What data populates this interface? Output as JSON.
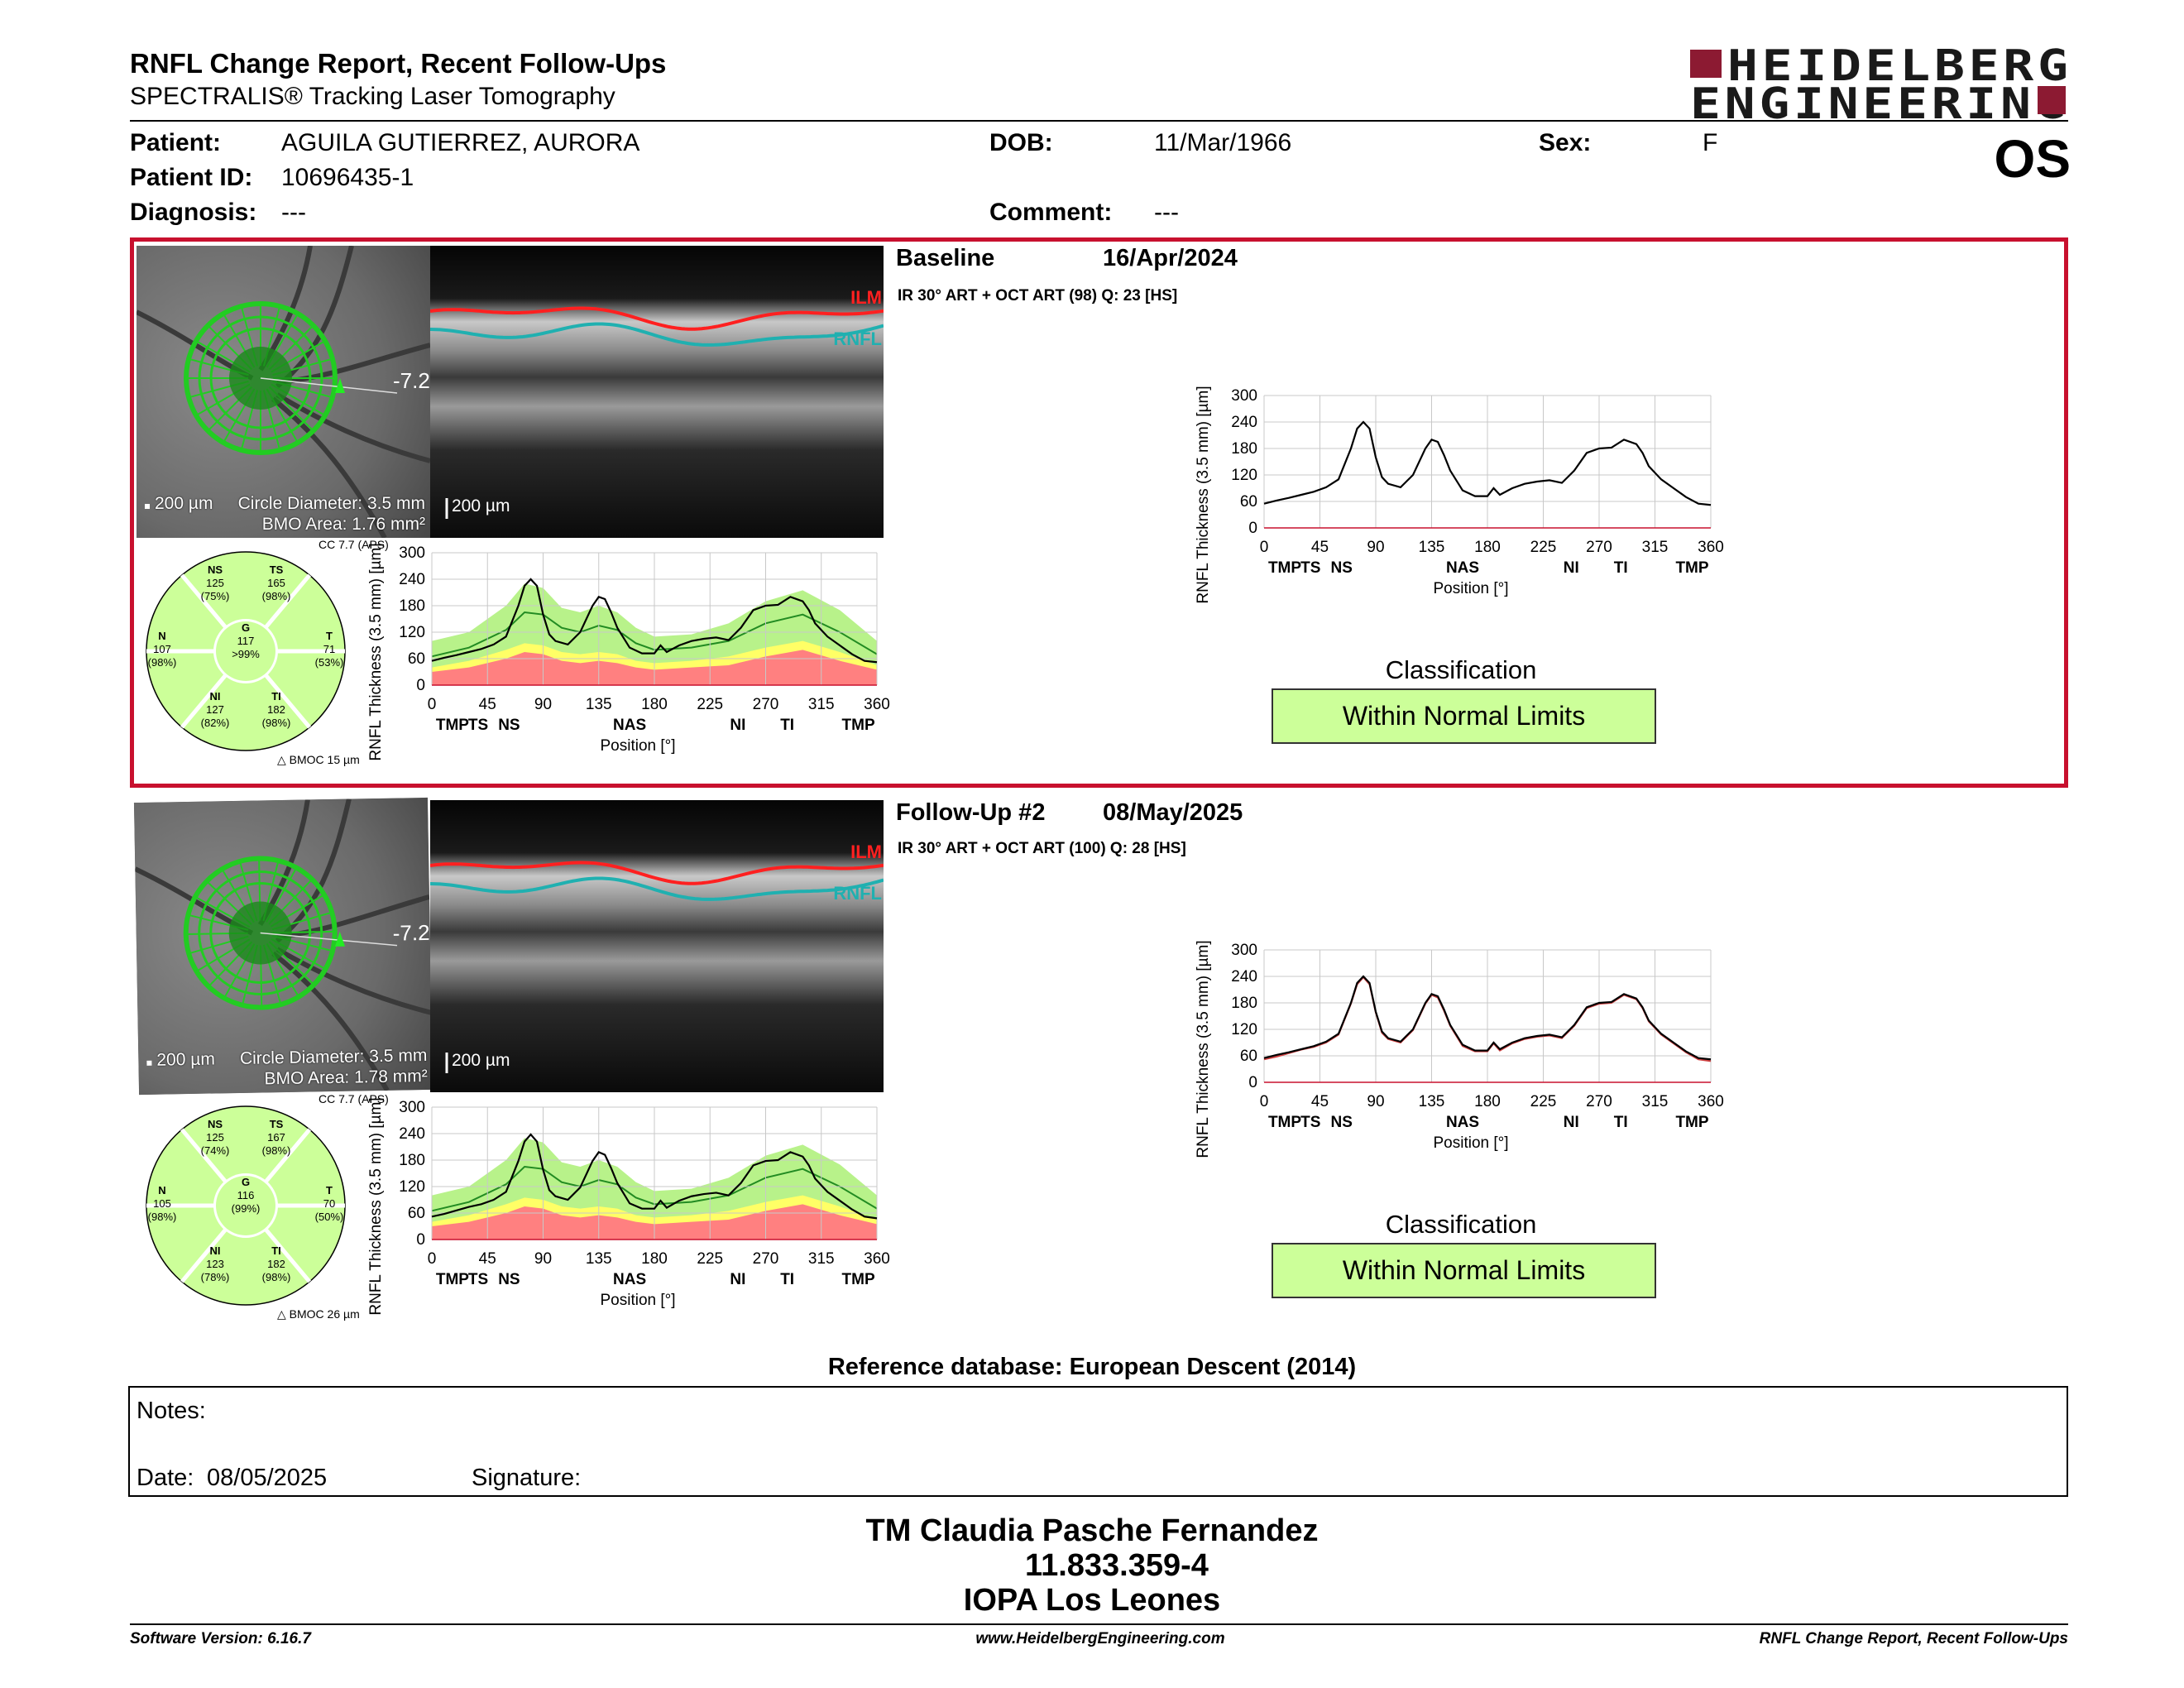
{
  "header": {
    "title": "RNFL Change Report, Recent Follow-Ups",
    "subtitle": "SPECTRALIS® Tracking Laser Tomography",
    "logo_line1": "HEIDELBERG",
    "logo_line2": "ENGINEERING",
    "eye": "OS"
  },
  "patient": {
    "name_label": "Patient:",
    "name": "AGUILA GUTIERREZ, AURORA",
    "dob_label": "DOB:",
    "dob": "11/Mar/1966",
    "sex_label": "Sex:",
    "sex": "F",
    "id_label": "Patient ID:",
    "id": "10696435-1",
    "diagnosis_label": "Diagnosis:",
    "diagnosis": "---",
    "comment_label": "Comment:",
    "comment": "---"
  },
  "colors": {
    "frame_red": "#c8102e",
    "logo_red": "#8c1a32",
    "within_normal": "#ccff99",
    "borderline": "#ffff66",
    "outside_normal": "#ff8080",
    "measured_line": "#000000",
    "normative_mean": "#228b22"
  },
  "axes": {
    "ylabel": "RNFL Thickness (3.5 mm) [µm]",
    "xlabel": "Position [°]",
    "yticks": [
      "300",
      "240",
      "180",
      "120",
      "60",
      "0"
    ],
    "xticks": [
      "0",
      "45",
      "90",
      "135",
      "180",
      "225",
      "270",
      "315",
      "360"
    ],
    "sectors": [
      "TMP",
      "TS",
      "NS",
      "NAS",
      "NI",
      "TI",
      "TMP"
    ]
  },
  "exams": [
    {
      "heading": "Baseline",
      "date": "16/Apr/2024",
      "info": "IR 30° ART + OCT ART (98) Q: 23 [HS]",
      "fundus": {
        "scale": "200 µm",
        "circle": "Circle Diameter: 3.5 mm",
        "bmo": "BMO Area: 1.76 mm²",
        "angle": "-7.2"
      },
      "bscan": {
        "scale": "200 µm",
        "ilm": "ILM",
        "rnfl": "RNFL"
      },
      "pie": {
        "cc": "CC 7.7 (APS)",
        "bmoc": "BMOC 15 µm",
        "NS": {
          "label": "NS",
          "value": "125",
          "pct": "(75%)"
        },
        "TS": {
          "label": "TS",
          "value": "165",
          "pct": "(98%)"
        },
        "N": {
          "label": "N",
          "value": "107",
          "pct": "(98%)"
        },
        "G": {
          "label": "G",
          "value": "117",
          "pct": ">99%"
        },
        "T": {
          "label": "T",
          "value": "71",
          "pct": "(53%)"
        },
        "NI": {
          "label": "NI",
          "value": "127",
          "pct": "(82%)"
        },
        "TI": {
          "label": "TI",
          "value": "182",
          "pct": "(98%)"
        }
      },
      "classification_title": "Classification",
      "classification": "Within Normal Limits"
    },
    {
      "heading": "Follow-Up #2",
      "date": "08/May/2025",
      "info": "IR 30° ART + OCT ART (100) Q: 28 [HS]",
      "fundus": {
        "scale": "200 µm",
        "circle": "Circle Diameter: 3.5 mm",
        "bmo": "BMO Area: 1.78 mm²",
        "angle": "-7.2"
      },
      "bscan": {
        "scale": "200 µm",
        "ilm": "ILM",
        "rnfl": "RNFL"
      },
      "pie": {
        "cc": "CC 7.7 (APS)",
        "bmoc": "BMOC 26 µm",
        "NS": {
          "label": "NS",
          "value": "125",
          "pct": "(74%)"
        },
        "TS": {
          "label": "TS",
          "value": "167",
          "pct": "(98%)"
        },
        "N": {
          "label": "N",
          "value": "105",
          "pct": "(98%)"
        },
        "G": {
          "label": "G",
          "value": "116",
          "pct": "(99%)"
        },
        "T": {
          "label": "T",
          "value": "70",
          "pct": "(50%)"
        },
        "NI": {
          "label": "NI",
          "value": "123",
          "pct": "(78%)"
        },
        "TI": {
          "label": "TI",
          "value": "182",
          "pct": "(98%)"
        }
      },
      "classification_title": "Classification",
      "classification": "Within Normal Limits"
    }
  ],
  "chart_data": [
    {
      "type": "line",
      "ylim": [
        0,
        300
      ],
      "xlim": [
        0,
        360
      ],
      "series": [
        {
          "x": [
            0,
            10,
            20,
            30,
            40,
            50,
            60,
            70,
            75,
            80,
            85,
            90,
            95,
            100,
            110,
            120,
            130,
            135,
            140,
            145,
            150,
            160,
            170,
            180,
            185,
            190,
            200,
            210,
            220,
            230,
            240,
            250,
            260,
            270,
            280,
            290,
            300,
            305,
            310,
            320,
            330,
            340,
            350,
            360
          ],
          "values": [
            55,
            62,
            68,
            75,
            82,
            92,
            110,
            180,
            225,
            240,
            225,
            160,
            115,
            100,
            92,
            120,
            180,
            200,
            195,
            165,
            130,
            85,
            72,
            72,
            90,
            75,
            90,
            100,
            105,
            108,
            102,
            130,
            170,
            180,
            182,
            200,
            190,
            170,
            140,
            110,
            90,
            70,
            55,
            52
          ]
        },
        {
          "x": [
            0,
            30,
            60,
            75,
            90,
            105,
            120,
            135,
            150,
            165,
            180,
            210,
            240,
            270,
            300,
            330,
            360
          ],
          "values": [
            65,
            85,
            125,
            165,
            160,
            130,
            120,
            135,
            125,
            95,
            80,
            85,
            100,
            140,
            160,
            120,
            70
          ]
        },
        {
          "x": [
            0,
            30,
            60,
            75,
            90,
            105,
            120,
            135,
            150,
            165,
            180,
            210,
            240,
            270,
            300,
            330,
            360
          ],
          "values": [
            100,
            120,
            180,
            230,
            220,
            175,
            165,
            180,
            165,
            130,
            110,
            115,
            140,
            190,
            215,
            170,
            100
          ]
        },
        {
          "x": [
            0,
            30,
            60,
            75,
            90,
            105,
            120,
            135,
            150,
            165,
            180,
            210,
            240,
            270,
            300,
            330,
            360
          ],
          "values": [
            40,
            55,
            80,
            95,
            90,
            75,
            70,
            75,
            70,
            55,
            50,
            55,
            65,
            85,
            100,
            75,
            45
          ]
        },
        {
          "x": [
            0,
            30,
            60,
            75,
            90,
            105,
            120,
            135,
            150,
            165,
            180,
            210,
            240,
            270,
            300,
            330,
            360
          ],
          "values": [
            30,
            40,
            60,
            75,
            70,
            55,
            50,
            55,
            50,
            40,
            35,
            40,
            45,
            65,
            80,
            55,
            35
          ]
        }
      ]
    },
    {
      "type": "line",
      "ylim": [
        0,
        300
      ],
      "xlim": [
        0,
        360
      ],
      "series": [
        {
          "x": [
            0,
            10,
            20,
            30,
            40,
            50,
            60,
            70,
            75,
            80,
            85,
            90,
            95,
            100,
            110,
            120,
            130,
            135,
            140,
            145,
            150,
            160,
            170,
            180,
            185,
            190,
            200,
            210,
            220,
            230,
            240,
            250,
            260,
            270,
            280,
            290,
            300,
            305,
            310,
            320,
            330,
            340,
            350,
            360
          ],
          "values": [
            55,
            62,
            68,
            75,
            82,
            92,
            110,
            180,
            225,
            240,
            225,
            160,
            115,
            100,
            92,
            120,
            180,
            200,
            195,
            165,
            130,
            85,
            72,
            72,
            90,
            75,
            90,
            100,
            105,
            108,
            102,
            130,
            170,
            180,
            182,
            200,
            190,
            170,
            140,
            110,
            90,
            70,
            55,
            52
          ]
        }
      ]
    },
    {
      "type": "line",
      "ylim": [
        0,
        300
      ],
      "xlim": [
        0,
        360
      ],
      "series": [
        {
          "x": [
            0,
            10,
            20,
            30,
            40,
            50,
            60,
            70,
            75,
            80,
            85,
            90,
            95,
            100,
            110,
            120,
            130,
            135,
            140,
            145,
            150,
            160,
            170,
            180,
            185,
            190,
            200,
            210,
            220,
            230,
            240,
            250,
            260,
            270,
            280,
            290,
            300,
            305,
            310,
            320,
            330,
            340,
            350,
            360
          ],
          "values": [
            52,
            58,
            66,
            74,
            80,
            90,
            108,
            178,
            222,
            238,
            222,
            158,
            112,
            98,
            90,
            118,
            178,
            198,
            192,
            162,
            128,
            82,
            70,
            70,
            88,
            72,
            88,
            98,
            103,
            106,
            100,
            128,
            168,
            178,
            180,
            198,
            188,
            168,
            138,
            108,
            88,
            68,
            52,
            48
          ]
        },
        {
          "x": [
            0,
            30,
            60,
            75,
            90,
            105,
            120,
            135,
            150,
            165,
            180,
            210,
            240,
            270,
            300,
            330,
            360
          ],
          "values": [
            65,
            85,
            125,
            165,
            160,
            130,
            120,
            135,
            125,
            95,
            80,
            85,
            100,
            140,
            160,
            120,
            70
          ]
        },
        {
          "x": [
            0,
            30,
            60,
            75,
            90,
            105,
            120,
            135,
            150,
            165,
            180,
            210,
            240,
            270,
            300,
            330,
            360
          ],
          "values": [
            100,
            120,
            180,
            230,
            220,
            175,
            165,
            180,
            165,
            130,
            110,
            115,
            140,
            190,
            215,
            170,
            100
          ]
        },
        {
          "x": [
            0,
            30,
            60,
            75,
            90,
            105,
            120,
            135,
            150,
            165,
            180,
            210,
            240,
            270,
            300,
            330,
            360
          ],
          "values": [
            40,
            55,
            80,
            95,
            90,
            75,
            70,
            75,
            70,
            55,
            50,
            55,
            65,
            85,
            100,
            75,
            45
          ]
        },
        {
          "x": [
            0,
            30,
            60,
            75,
            90,
            105,
            120,
            135,
            150,
            165,
            180,
            210,
            240,
            270,
            300,
            330,
            360
          ],
          "values": [
            30,
            40,
            60,
            75,
            70,
            55,
            50,
            55,
            50,
            40,
            35,
            40,
            45,
            65,
            80,
            55,
            35
          ]
        }
      ]
    },
    {
      "type": "line",
      "ylim": [
        0,
        300
      ],
      "xlim": [
        0,
        360
      ],
      "series": [
        {
          "x": [
            0,
            10,
            20,
            30,
            40,
            50,
            60,
            70,
            75,
            80,
            85,
            90,
            95,
            100,
            110,
            120,
            130,
            135,
            140,
            145,
            150,
            160,
            170,
            180,
            185,
            190,
            200,
            210,
            220,
            230,
            240,
            250,
            260,
            270,
            280,
            290,
            300,
            305,
            310,
            320,
            330,
            340,
            350,
            360
          ],
          "values": [
            55,
            62,
            68,
            75,
            82,
            92,
            110,
            180,
            225,
            240,
            225,
            160,
            115,
            100,
            92,
            120,
            180,
            200,
            195,
            165,
            130,
            85,
            72,
            72,
            90,
            75,
            90,
            100,
            105,
            108,
            102,
            130,
            170,
            180,
            182,
            200,
            190,
            170,
            140,
            110,
            90,
            70,
            55,
            52
          ]
        },
        {
          "x": [
            0,
            10,
            20,
            30,
            40,
            50,
            60,
            70,
            75,
            80,
            85,
            90,
            95,
            100,
            110,
            120,
            130,
            135,
            140,
            145,
            150,
            160,
            170,
            180,
            185,
            190,
            200,
            210,
            220,
            230,
            240,
            250,
            260,
            270,
            280,
            290,
            300,
            305,
            310,
            320,
            330,
            340,
            350,
            360
          ],
          "values": [
            52,
            58,
            66,
            74,
            80,
            90,
            108,
            178,
            222,
            238,
            222,
            158,
            112,
            98,
            90,
            118,
            178,
            198,
            192,
            162,
            128,
            82,
            70,
            70,
            88,
            72,
            88,
            98,
            103,
            106,
            100,
            128,
            168,
            178,
            180,
            198,
            188,
            168,
            138,
            108,
            88,
            68,
            52,
            48
          ]
        }
      ]
    }
  ],
  "reference": "Reference database: European Descent (2014)",
  "notes": {
    "notes_label": "Notes:",
    "date_label": "Date:",
    "date": "08/05/2025",
    "signature_label": "Signature:"
  },
  "signature": {
    "name": "TM Claudia Pasche Fernandez",
    "rut": "11.833.359-4",
    "place": "IOPA Los Leones"
  },
  "footer": {
    "software": "Software Version: 6.16.7",
    "website": "www.HeidelbergEngineering.com",
    "report": "RNFL Change Report, Recent Follow-Ups"
  }
}
